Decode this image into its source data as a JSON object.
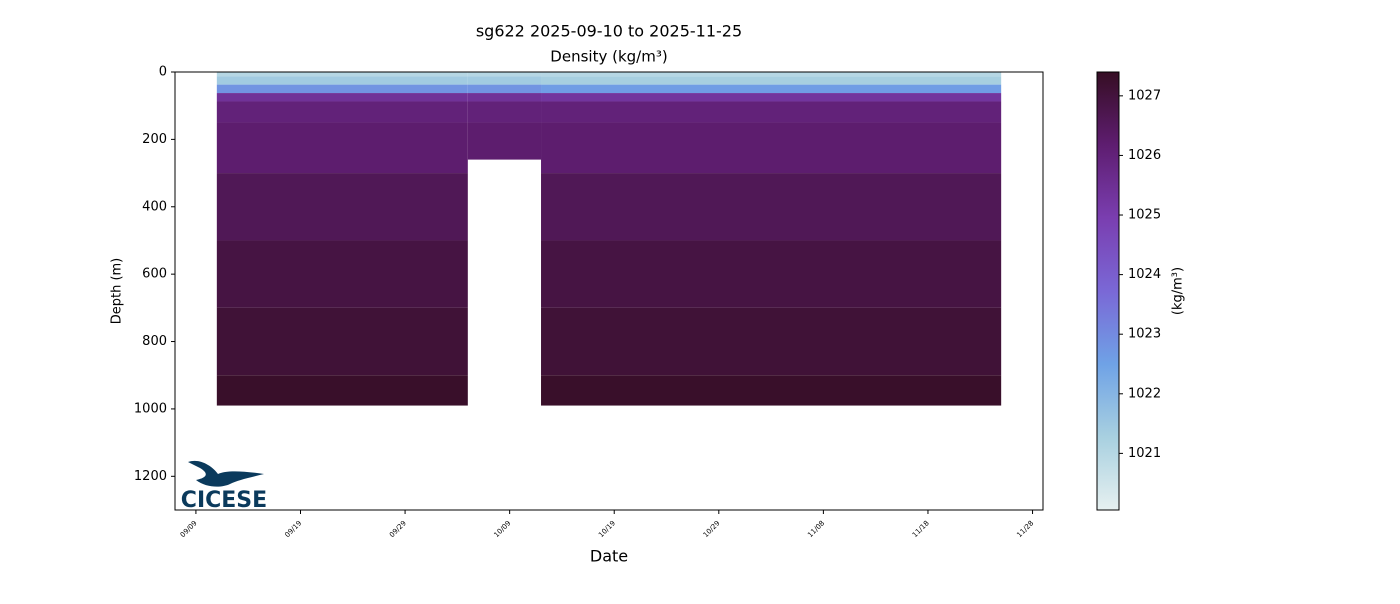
{
  "chart_data": {
    "type": "section",
    "title": "sg622 2025-09-10 to 2025-11-25",
    "subtitle": "Density (kg/m³)",
    "x_label": "Date",
    "y_label": "Depth (m)",
    "colorbar_label": "(kg/m³)",
    "logo": "CICESE",
    "xlim": [
      "09/07",
      "11/29"
    ],
    "xticks": [
      "09/09",
      "09/19",
      "09/29",
      "10/09",
      "10/19",
      "10/29",
      "11/08",
      "11/18",
      "11/28"
    ],
    "ylim": [
      1300,
      0
    ],
    "yticks": [
      0,
      200,
      400,
      600,
      800,
      1000,
      1200
    ],
    "depths": [
      0,
      25,
      50,
      75,
      100,
      200,
      400,
      600,
      800,
      1000
    ],
    "segments": [
      {
        "start": "09/11",
        "end": "10/05",
        "max_depth": 990,
        "values": [
          1021.0,
          1021.4,
          1022.8,
          1025.4,
          1026.0,
          1026.2,
          1026.6,
          1026.9,
          1027.1,
          1027.3
        ]
      },
      {
        "start": "10/05",
        "end": "10/12",
        "max_depth": 260,
        "values": [
          1021.0,
          1021.4,
          1022.8,
          1025.4,
          1026.0,
          1026.2
        ]
      },
      {
        "start": "10/12",
        "end": "11/25",
        "max_depth": 990,
        "values": [
          1021.0,
          1021.3,
          1022.6,
          1025.3,
          1026.0,
          1026.2,
          1026.6,
          1026.9,
          1027.1,
          1027.3
        ]
      }
    ],
    "clim": [
      1020.05,
      1027.4
    ],
    "cticks": [
      1021,
      1022,
      1023,
      1024,
      1025,
      1026,
      1027
    ],
    "colormap": [
      "#e6f0f0",
      "#a8d0e0",
      "#6fa2e6",
      "#7a68d6",
      "#7a3eb0",
      "#5e1d70",
      "#360e24"
    ]
  }
}
